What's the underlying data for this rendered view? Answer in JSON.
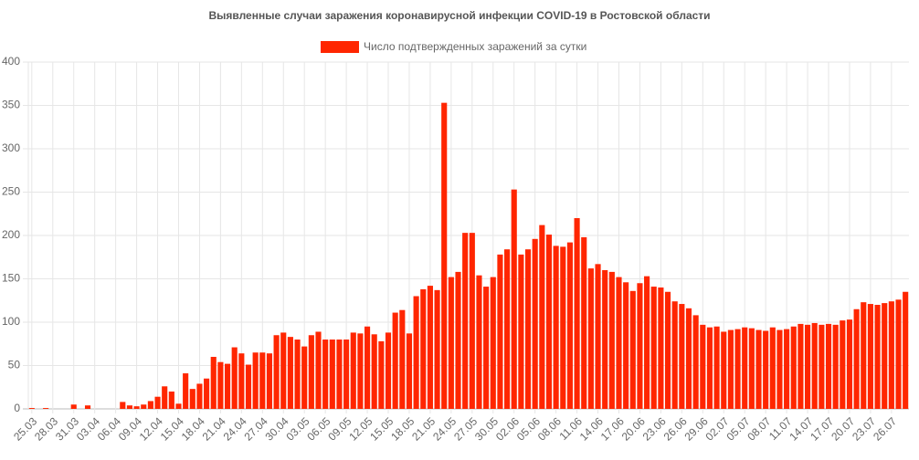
{
  "chart_data": {
    "type": "bar",
    "title": "Выявленные случаи заражения коронавирусной инфекции COVID-19 в Ростовской области",
    "categories": [
      "25.03",
      null,
      null,
      "28.03",
      null,
      null,
      "31.03",
      null,
      null,
      "03.04",
      null,
      null,
      "06.04",
      null,
      null,
      "09.04",
      null,
      null,
      "12.04",
      null,
      null,
      "15.04",
      null,
      null,
      "18.04",
      null,
      null,
      "21.04",
      null,
      null,
      "24.04",
      null,
      null,
      "27.04",
      null,
      null,
      "30.04",
      null,
      null,
      "03.05",
      null,
      null,
      "06.05",
      null,
      null,
      "09.05",
      null,
      null,
      "12.05",
      null,
      null,
      "15.05",
      null,
      null,
      "18.05",
      null,
      null,
      "21.05",
      null,
      null,
      "24.05",
      null,
      null,
      "27.05",
      null,
      null,
      "30.05",
      null,
      null,
      "02.06",
      null,
      null,
      "05.06",
      null,
      null,
      "08.06",
      null,
      null,
      "11.06",
      null,
      null,
      "14.06",
      null,
      null,
      "17.06",
      null,
      null,
      "20.06",
      null,
      null,
      "23.06",
      null,
      null,
      "26.06",
      null,
      null,
      "29.06",
      null,
      null,
      "02.07",
      null,
      null,
      "05.07",
      null,
      null,
      "08.07",
      null,
      null,
      "11.07",
      null,
      null,
      "14.07",
      null,
      null,
      "17.07",
      null,
      null,
      "20.07",
      null,
      null,
      "23.07",
      null,
      null,
      "26.07",
      null,
      null
    ],
    "series": [
      {
        "name": "Число подтвержденных заражений за сутки",
        "color": "#ff2600",
        "values": [
          1,
          0,
          1,
          0,
          0,
          0,
          5,
          0,
          4,
          0,
          0,
          0,
          0,
          8,
          4,
          3,
          5,
          9,
          14,
          26,
          20,
          6,
          41,
          23,
          29,
          35,
          60,
          54,
          52,
          71,
          64,
          51,
          65,
          65,
          64,
          85,
          88,
          83,
          80,
          72,
          85,
          89,
          80,
          80,
          80,
          80,
          88,
          87,
          95,
          86,
          78,
          88,
          111,
          114,
          87,
          130,
          138,
          142,
          137,
          353,
          152,
          158,
          203,
          203,
          154,
          141,
          152,
          178,
          184,
          253,
          178,
          184,
          196,
          212,
          201,
          188,
          187,
          192,
          220,
          198,
          162,
          167,
          160,
          158,
          152,
          146,
          136,
          145,
          153,
          141,
          140,
          135,
          124,
          121,
          116,
          108,
          97,
          94,
          95,
          89,
          91,
          92,
          94,
          93,
          91,
          90,
          94,
          91,
          92,
          95,
          98,
          97,
          99,
          97,
          98,
          97,
          102,
          103,
          115,
          123,
          121,
          120,
          122,
          124,
          126,
          135
        ]
      }
    ],
    "ylim": [
      0,
      400
    ],
    "yticks": [
      0,
      50,
      100,
      150,
      200,
      250,
      300,
      350,
      400
    ],
    "grid": true,
    "legend": "top"
  }
}
